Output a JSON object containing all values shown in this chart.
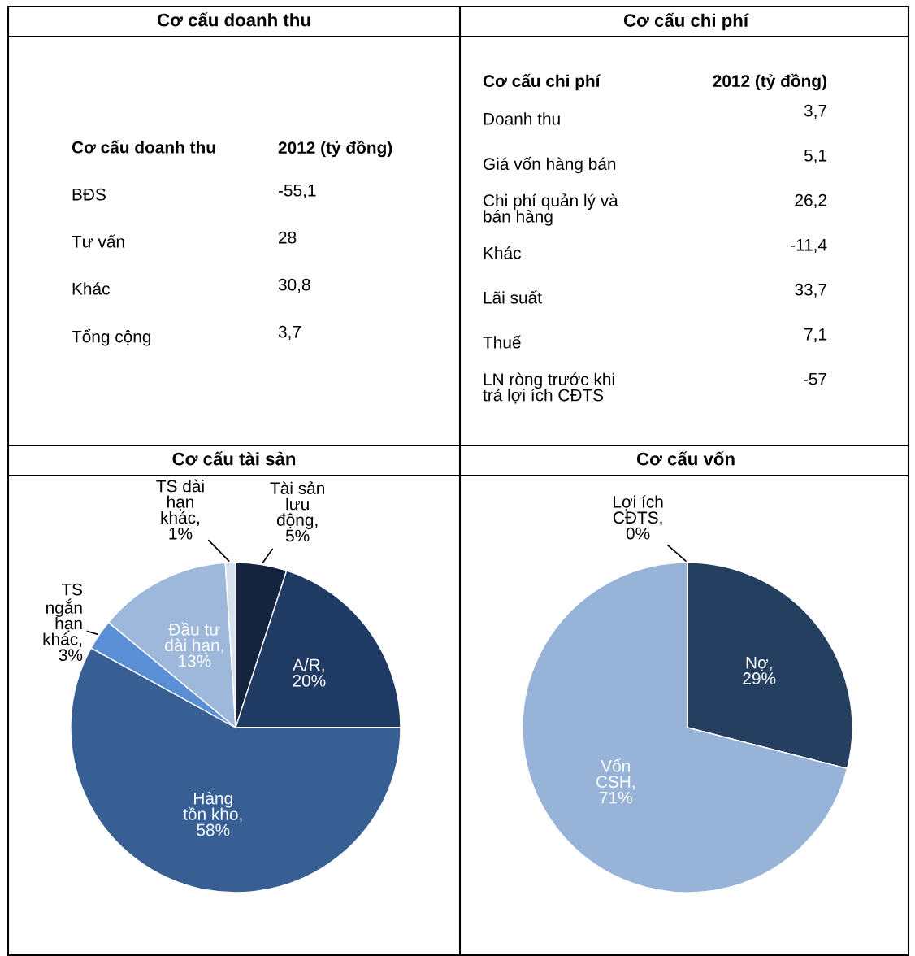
{
  "chart_data": [
    {
      "type": "other",
      "title": "Cơ cấu doanh thu",
      "annotations": [
        "Cơ cấu doanh thu",
        "2012 (tỷ đồng)"
      ],
      "categories": [
        "BĐS",
        "Tư vấn",
        "Khác",
        "Tổng cộng"
      ],
      "values": [
        -55.1,
        28,
        30.8,
        3.7
      ],
      "value_labels": [
        "-55,1",
        "28",
        "30,8",
        "3,7"
      ]
    },
    {
      "type": "other",
      "title": "Cơ cấu chi phí",
      "annotations": [
        "Cơ cấu chi phí",
        "2012 (tỷ đồng)"
      ],
      "categories": [
        "Doanh thu",
        "Giá vốn hàng bán",
        "Chi phí quản lý và\nbán hàng",
        "Khác",
        "Lãi suất",
        "Thuế",
        "LN ròng trước khi\ntrả lợi ích CĐTS"
      ],
      "values": [
        3.7,
        5.1,
        26.2,
        -11.4,
        33.7,
        7.1,
        -57
      ],
      "value_labels": [
        "3,7",
        "5,1",
        "26,2",
        "-11,4",
        "33,7",
        "7,1",
        "-57"
      ]
    },
    {
      "type": "pie",
      "title": "Cơ cấu tài sản",
      "categories": [
        "Tài sản\nlưu\nđộng,\n5%",
        "A/R,\n20%",
        "Hàng\ntồn kho,\n58%",
        "TS\nngắn\nhạn\nkhác,\n3%",
        "Đầu tư\ndài hạn,\n13%",
        "TS dài\nhạn\nkhác,\n1%"
      ],
      "values": [
        5,
        20,
        58,
        3,
        13,
        1
      ],
      "colors": [
        "#15253f",
        "#1f3a63",
        "#375f93",
        "#5a8fd6",
        "#9db8da",
        "#d8e2ee"
      ]
    },
    {
      "type": "pie",
      "title": "Cơ cấu vốn",
      "categories": [
        "Nợ,\n29%",
        "Vốn\nCSH,\n71%",
        "Lợi ích\nCĐTS,\n0%"
      ],
      "values": [
        29,
        71,
        0
      ],
      "colors": [
        "#253f61",
        "#97b4d8",
        "#9bbb59"
      ]
    }
  ]
}
